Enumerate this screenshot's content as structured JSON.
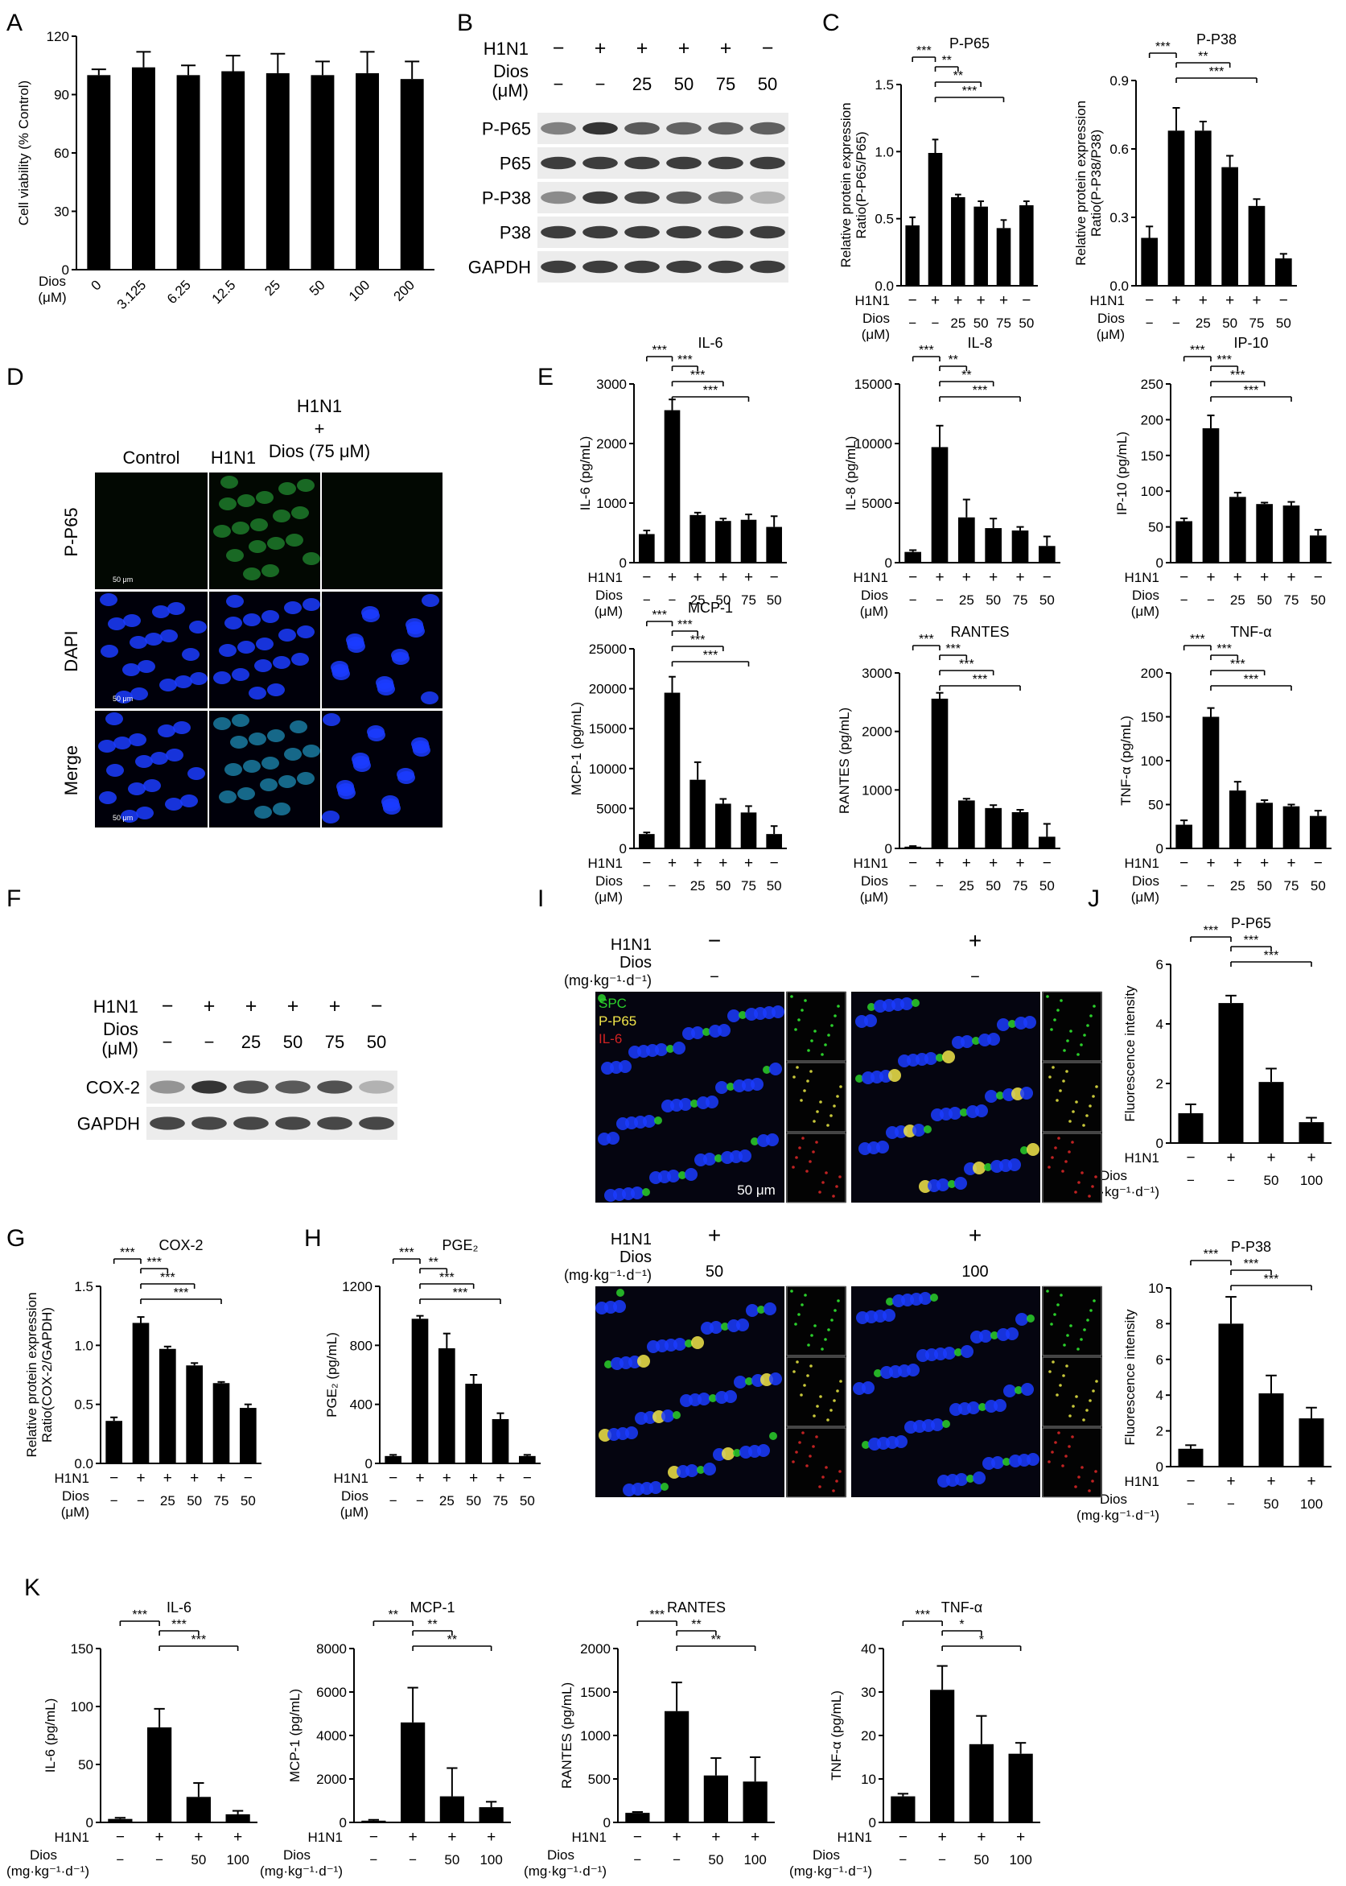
{
  "panel_letters": [
    "A",
    "B",
    "C",
    "D",
    "E",
    "F",
    "G",
    "H",
    "I",
    "J",
    "K"
  ],
  "colors": {
    "bar": "#000000",
    "blot_bg": "#ececec",
    "band": "#2a2a2a",
    "cell_blue": "#1b3cff",
    "green": "#2bd02b",
    "yellow": "#f2e64a",
    "red": "#d12222",
    "dark": "#050510"
  },
  "panel_A": {
    "ylabel": "Cell viability (% Control)",
    "row_label": "Dios\n(μM)",
    "categories": [
      "0",
      "3.125",
      "6.25",
      "12.5",
      "25",
      "50",
      "100",
      "200"
    ],
    "values": [
      100,
      104,
      100,
      102,
      101,
      100,
      101,
      98
    ],
    "errors": [
      3,
      8,
      5,
      8,
      10,
      7,
      11,
      9
    ],
    "ylim": [
      0,
      120
    ],
    "yticks": [
      0,
      30,
      60,
      90,
      120
    ]
  },
  "panel_B": {
    "row_labels": [
      "H1N1",
      "Dios\n(μM)"
    ],
    "h1n1": [
      "−",
      "+",
      "+",
      "+",
      "+",
      "−"
    ],
    "dios": [
      "−",
      "−",
      "25",
      "50",
      "75",
      "50"
    ],
    "blots": [
      {
        "label": "P-P65",
        "intensity": [
          0.55,
          0.95,
          0.75,
          0.7,
          0.72,
          0.72
        ]
      },
      {
        "label": "P65",
        "intensity": [
          0.9,
          0.9,
          0.9,
          0.9,
          0.9,
          0.9
        ]
      },
      {
        "label": "P-P38",
        "intensity": [
          0.5,
          0.9,
          0.85,
          0.75,
          0.55,
          0.3
        ]
      },
      {
        "label": "P38",
        "intensity": [
          0.9,
          0.9,
          0.9,
          0.9,
          0.9,
          0.9
        ]
      },
      {
        "label": "GAPDH",
        "intensity": [
          0.9,
          0.9,
          0.9,
          0.9,
          0.9,
          0.9
        ]
      }
    ]
  },
  "panel_D": {
    "columns": [
      "Control",
      "H1N1",
      "H1N1\n+\nDios (75 μM)"
    ],
    "rows": [
      "P-P65",
      "DAPI",
      "Merge"
    ],
    "scale": "50 μm"
  },
  "panel_F": {
    "row_labels": [
      "H1N1",
      "Dios\n(μM)"
    ],
    "h1n1": [
      "−",
      "+",
      "+",
      "+",
      "+",
      "−"
    ],
    "dios": [
      "−",
      "−",
      "25",
      "50",
      "75",
      "50"
    ],
    "blots": [
      {
        "label": "COX-2",
        "intensity": [
          0.45,
          0.95,
          0.8,
          0.75,
          0.8,
          0.3
        ]
      },
      {
        "label": "GAPDH",
        "intensity": [
          0.85,
          0.85,
          0.85,
          0.85,
          0.85,
          0.85
        ]
      }
    ]
  },
  "panel_I": {
    "h1n1_label": "H1N1",
    "dios_label": "Dios\n(mg·kg⁻¹·d⁻¹)",
    "groups": [
      {
        "h1n1": "−",
        "dios": "−"
      },
      {
        "h1n1": "+",
        "dios": "−"
      },
      {
        "h1n1": "+",
        "dios": "50"
      },
      {
        "h1n1": "+",
        "dios": "100"
      }
    ],
    "legend": [
      "SPC",
      "P-P65",
      "IL-6"
    ],
    "scale": "50 μm"
  },
  "chart_data": [
    {
      "id": "C1",
      "type": "bar",
      "title": "P-P65",
      "ylabel": "Relative protein expression\nRatio(P-P65/P65)",
      "values": [
        0.45,
        0.99,
        0.66,
        0.59,
        0.43,
        0.6
      ],
      "errors": [
        0.06,
        0.1,
        0.02,
        0.04,
        0.06,
        0.03
      ],
      "ylim": [
        0,
        1.5
      ],
      "yticks": [
        "0.0",
        "0.5",
        "1.0",
        "1.5"
      ],
      "h1n1": [
        "−",
        "+",
        "+",
        "+",
        "+",
        "−"
      ],
      "dios": [
        "−",
        "−",
        "25",
        "50",
        "75",
        "50"
      ],
      "dios_label": "Dios\n(μM)",
      "sig": [
        {
          "a": 0,
          "b": 1,
          "t": "***"
        },
        {
          "a": 1,
          "b": 2,
          "t": "**"
        },
        {
          "a": 1,
          "b": 3,
          "t": "**"
        },
        {
          "a": 1,
          "b": 4,
          "t": "***"
        }
      ]
    },
    {
      "id": "C2",
      "type": "bar",
      "title": "P-P38",
      "ylabel": "Relative protein expression\nRatio(P-P38/P38)",
      "values": [
        0.21,
        0.68,
        0.68,
        0.52,
        0.35,
        0.12
      ],
      "errors": [
        0.05,
        0.1,
        0.04,
        0.05,
        0.03,
        0.02
      ],
      "ylim": [
        0,
        0.9
      ],
      "yticks": [
        "0.0",
        "0.3",
        "0.6",
        "0.9"
      ],
      "h1n1": [
        "−",
        "+",
        "+",
        "+",
        "+",
        "−"
      ],
      "dios": [
        "−",
        "−",
        "25",
        "50",
        "75",
        "50"
      ],
      "dios_label": "Dios\n(μM)",
      "sig": [
        {
          "a": 0,
          "b": 1,
          "t": "***"
        },
        {
          "a": 1,
          "b": 3,
          "t": "**"
        },
        {
          "a": 1,
          "b": 4,
          "t": "***"
        }
      ]
    },
    {
      "id": "E1",
      "type": "bar",
      "title": "IL-6",
      "ylabel": "IL-6 (pg/mL)",
      "values": [
        480,
        2560,
        800,
        700,
        720,
        600
      ],
      "errors": [
        60,
        180,
        40,
        40,
        90,
        180
      ],
      "ylim": [
        0,
        3000
      ],
      "yticks": [
        "0",
        "1000",
        "2000",
        "3000"
      ],
      "h1n1": [
        "−",
        "+",
        "+",
        "+",
        "+",
        "−"
      ],
      "dios": [
        "−",
        "−",
        "25",
        "50",
        "75",
        "50"
      ],
      "dios_label": "Dios\n(μM)",
      "sig": [
        {
          "a": 0,
          "b": 1,
          "t": "***"
        },
        {
          "a": 1,
          "b": 2,
          "t": "***"
        },
        {
          "a": 1,
          "b": 3,
          "t": "***"
        },
        {
          "a": 1,
          "b": 4,
          "t": "***"
        }
      ]
    },
    {
      "id": "E2",
      "type": "bar",
      "title": "IL-8",
      "ylabel": "IL-8 (pg/mL)",
      "values": [
        900,
        9700,
        3800,
        2900,
        2700,
        1400
      ],
      "errors": [
        150,
        1800,
        1500,
        800,
        300,
        800
      ],
      "ylim": [
        0,
        15000
      ],
      "yticks": [
        "0",
        "5000",
        "10000",
        "15000"
      ],
      "h1n1": [
        "−",
        "+",
        "+",
        "+",
        "+",
        "−"
      ],
      "dios": [
        "−",
        "−",
        "25",
        "50",
        "75",
        "50"
      ],
      "dios_label": "Dios\n(μM)",
      "sig": [
        {
          "a": 0,
          "b": 1,
          "t": "***"
        },
        {
          "a": 1,
          "b": 2,
          "t": "**"
        },
        {
          "a": 1,
          "b": 3,
          "t": "**"
        },
        {
          "a": 1,
          "b": 4,
          "t": "***"
        }
      ]
    },
    {
      "id": "E3",
      "type": "bar",
      "title": "IP-10",
      "ylabel": "IP-10 (pg/mL)",
      "values": [
        58,
        188,
        92,
        82,
        80,
        38
      ],
      "errors": [
        4,
        18,
        6,
        2,
        5,
        8
      ],
      "ylim": [
        0,
        250
      ],
      "yticks": [
        "0",
        "50",
        "100",
        "150",
        "200",
        "250"
      ],
      "h1n1": [
        "−",
        "+",
        "+",
        "+",
        "+",
        "−"
      ],
      "dios": [
        "−",
        "−",
        "25",
        "50",
        "75",
        "50"
      ],
      "dios_label": "Dios\n(μM)",
      "sig": [
        {
          "a": 0,
          "b": 1,
          "t": "***"
        },
        {
          "a": 1,
          "b": 2,
          "t": "***"
        },
        {
          "a": 1,
          "b": 3,
          "t": "***"
        },
        {
          "a": 1,
          "b": 4,
          "t": "***"
        }
      ]
    },
    {
      "id": "E4",
      "type": "bar",
      "title": "MCP-1",
      "ylabel": "MCP-1 (pg/mL)",
      "values": [
        1800,
        19500,
        8600,
        5600,
        4500,
        1800
      ],
      "errors": [
        200,
        2000,
        2200,
        600,
        800,
        1000
      ],
      "ylim": [
        0,
        25000
      ],
      "yticks": [
        "0",
        "5000",
        "10000",
        "15000",
        "20000",
        "25000"
      ],
      "h1n1": [
        "−",
        "+",
        "+",
        "+",
        "+",
        "−"
      ],
      "dios": [
        "−",
        "−",
        "25",
        "50",
        "75",
        "50"
      ],
      "dios_label": "Dios\n(μM)",
      "sig": [
        {
          "a": 0,
          "b": 1,
          "t": "***"
        },
        {
          "a": 1,
          "b": 2,
          "t": "***"
        },
        {
          "a": 1,
          "b": 3,
          "t": "***"
        },
        {
          "a": 1,
          "b": 4,
          "t": "***"
        }
      ]
    },
    {
      "id": "E5",
      "type": "bar",
      "title": "RANTES",
      "ylabel": "RANTES (pg/mL)",
      "values": [
        30,
        2560,
        820,
        690,
        620,
        200
      ],
      "errors": [
        10,
        100,
        30,
        50,
        40,
        220
      ],
      "ylim": [
        0,
        3000
      ],
      "yticks": [
        "0",
        "1000",
        "2000",
        "3000"
      ],
      "h1n1": [
        "−",
        "+",
        "+",
        "+",
        "+",
        "−"
      ],
      "dios": [
        "−",
        "−",
        "25",
        "50",
        "75",
        "50"
      ],
      "dios_label": "Dios\n(μM)",
      "sig": [
        {
          "a": 0,
          "b": 1,
          "t": "***"
        },
        {
          "a": 1,
          "b": 2,
          "t": "***"
        },
        {
          "a": 1,
          "b": 3,
          "t": "***"
        },
        {
          "a": 1,
          "b": 4,
          "t": "***"
        }
      ]
    },
    {
      "id": "E6",
      "type": "bar",
      "title": "TNF-α",
      "ylabel": "TNF-α (pg/mL)",
      "values": [
        27,
        150,
        66,
        52,
        48,
        37
      ],
      "errors": [
        5,
        10,
        10,
        3,
        2,
        6
      ],
      "ylim": [
        0,
        200
      ],
      "yticks": [
        "0",
        "50",
        "100",
        "150",
        "200"
      ],
      "h1n1": [
        "−",
        "+",
        "+",
        "+",
        "+",
        "−"
      ],
      "dios": [
        "−",
        "−",
        "25",
        "50",
        "75",
        "50"
      ],
      "dios_label": "Dios\n(μM)",
      "sig": [
        {
          "a": 0,
          "b": 1,
          "t": "***"
        },
        {
          "a": 1,
          "b": 2,
          "t": "***"
        },
        {
          "a": 1,
          "b": 3,
          "t": "***"
        },
        {
          "a": 1,
          "b": 4,
          "t": "***"
        }
      ]
    },
    {
      "id": "G",
      "type": "bar",
      "title": "COX-2",
      "ylabel": "Relative protein expression\nRatio(COX-2/GAPDH)",
      "values": [
        0.36,
        1.19,
        0.97,
        0.83,
        0.68,
        0.47
      ],
      "errors": [
        0.03,
        0.05,
        0.02,
        0.02,
        0.01,
        0.03
      ],
      "ylim": [
        0,
        1.5
      ],
      "yticks": [
        "0.0",
        "0.5",
        "1.0",
        "1.5"
      ],
      "h1n1": [
        "−",
        "+",
        "+",
        "+",
        "+",
        "−"
      ],
      "dios": [
        "−",
        "−",
        "25",
        "50",
        "75",
        "50"
      ],
      "dios_label": "Dios\n(μM)",
      "sig": [
        {
          "a": 0,
          "b": 1,
          "t": "***"
        },
        {
          "a": 1,
          "b": 2,
          "t": "***"
        },
        {
          "a": 1,
          "b": 3,
          "t": "***"
        },
        {
          "a": 1,
          "b": 4,
          "t": "***"
        }
      ]
    },
    {
      "id": "H",
      "type": "bar",
      "title": "PGE₂",
      "ylabel": "PGE₂ (pg/mL)",
      "values": [
        50,
        980,
        780,
        540,
        300,
        50
      ],
      "errors": [
        8,
        20,
        100,
        60,
        40,
        8
      ],
      "ylim": [
        0,
        1200
      ],
      "yticks": [
        "0",
        "400",
        "800",
        "1200"
      ],
      "h1n1": [
        "−",
        "+",
        "+",
        "+",
        "+",
        "−"
      ],
      "dios": [
        "−",
        "−",
        "25",
        "50",
        "75",
        "50"
      ],
      "dios_label": "Dios\n(μM)",
      "sig": [
        {
          "a": 0,
          "b": 1,
          "t": "***"
        },
        {
          "a": 1,
          "b": 2,
          "t": "**"
        },
        {
          "a": 1,
          "b": 3,
          "t": "***"
        },
        {
          "a": 1,
          "b": 4,
          "t": "***"
        }
      ]
    },
    {
      "id": "J1",
      "type": "bar",
      "title": "P-P65",
      "ylabel": "Fluorescence intensity",
      "values": [
        1.0,
        4.7,
        2.05,
        0.7
      ],
      "errors": [
        0.3,
        0.25,
        0.45,
        0.15
      ],
      "ylim": [
        0,
        6
      ],
      "yticks": [
        "0",
        "2",
        "4",
        "6"
      ],
      "h1n1": [
        "−",
        "+",
        "+",
        "+"
      ],
      "dios": [
        "−",
        "−",
        "50",
        "100"
      ],
      "dios_label": "Dios\n(mg·kg⁻¹·d⁻¹)",
      "sig": [
        {
          "a": 0,
          "b": 1,
          "t": "***"
        },
        {
          "a": 1,
          "b": 2,
          "t": "***"
        },
        {
          "a": 1,
          "b": 3,
          "t": "***"
        }
      ]
    },
    {
      "id": "J2",
      "type": "bar",
      "title": "P-P38",
      "ylabel": "Fluorescence intensity",
      "values": [
        1.0,
        8.0,
        4.1,
        2.7
      ],
      "errors": [
        0.2,
        1.5,
        1.0,
        0.6
      ],
      "ylim": [
        0,
        10
      ],
      "yticks": [
        "0",
        "2",
        "4",
        "6",
        "8",
        "10"
      ],
      "h1n1": [
        "−",
        "+",
        "+",
        "+"
      ],
      "dios": [
        "−",
        "−",
        "50",
        "100"
      ],
      "dios_label": "Dios\n(mg·kg⁻¹·d⁻¹)",
      "sig": [
        {
          "a": 0,
          "b": 1,
          "t": "***"
        },
        {
          "a": 1,
          "b": 2,
          "t": "***"
        },
        {
          "a": 1,
          "b": 3,
          "t": "***"
        }
      ]
    },
    {
      "id": "K1",
      "type": "bar",
      "title": "IL-6",
      "ylabel": "IL-6 (pg/mL)",
      "values": [
        3,
        82,
        22,
        7
      ],
      "errors": [
        1,
        16,
        12,
        3
      ],
      "ylim": [
        0,
        150
      ],
      "yticks": [
        "0",
        "50",
        "100",
        "150"
      ],
      "h1n1": [
        "−",
        "+",
        "+",
        "+"
      ],
      "dios": [
        "−",
        "−",
        "50",
        "100"
      ],
      "dios_label": "Dios\n(mg·kg⁻¹·d⁻¹)",
      "sig": [
        {
          "a": 0,
          "b": 1,
          "t": "***"
        },
        {
          "a": 1,
          "b": 2,
          "t": "***"
        },
        {
          "a": 1,
          "b": 3,
          "t": "***"
        }
      ]
    },
    {
      "id": "K2",
      "type": "bar",
      "title": "MCP-1",
      "ylabel": "MCP-1 (pg/mL)",
      "values": [
        80,
        4600,
        1200,
        700
      ],
      "errors": [
        40,
        1600,
        1300,
        250
      ],
      "ylim": [
        0,
        8000
      ],
      "yticks": [
        "0",
        "2000",
        "4000",
        "6000",
        "8000"
      ],
      "h1n1": [
        "−",
        "+",
        "+",
        "+"
      ],
      "dios": [
        "−",
        "−",
        "50",
        "100"
      ],
      "dios_label": "Dios\n(mg·kg⁻¹·d⁻¹)",
      "sig": [
        {
          "a": 0,
          "b": 1,
          "t": "**"
        },
        {
          "a": 1,
          "b": 2,
          "t": "**"
        },
        {
          "a": 1,
          "b": 3,
          "t": "**"
        }
      ]
    },
    {
      "id": "K3",
      "type": "bar",
      "title": "RANTES",
      "ylabel": "RANTES (pg/mL)",
      "values": [
        110,
        1280,
        540,
        470
      ],
      "errors": [
        10,
        330,
        200,
        280
      ],
      "ylim": [
        0,
        2000
      ],
      "yticks": [
        "0",
        "500",
        "1000",
        "1500",
        "2000"
      ],
      "h1n1": [
        "−",
        "+",
        "+",
        "+"
      ],
      "dios": [
        "−",
        "−",
        "50",
        "100"
      ],
      "dios_label": "Dios\n(mg·kg⁻¹·d⁻¹)",
      "sig": [
        {
          "a": 0,
          "b": 1,
          "t": "***"
        },
        {
          "a": 1,
          "b": 2,
          "t": "**"
        },
        {
          "a": 1,
          "b": 3,
          "t": "**"
        }
      ]
    },
    {
      "id": "K4",
      "type": "bar",
      "title": "TNF-α",
      "ylabel": "TNF-α (pg/mL)",
      "values": [
        6,
        30.5,
        18,
        15.8
      ],
      "errors": [
        0.6,
        5.5,
        6.5,
        2.5
      ],
      "ylim": [
        0,
        40
      ],
      "yticks": [
        "0",
        "10",
        "20",
        "30",
        "40"
      ],
      "h1n1": [
        "−",
        "+",
        "+",
        "+"
      ],
      "dios": [
        "−",
        "−",
        "50",
        "100"
      ],
      "dios_label": "Dios\n(mg·kg⁻¹·d⁻¹)",
      "sig": [
        {
          "a": 0,
          "b": 1,
          "t": "***"
        },
        {
          "a": 1,
          "b": 2,
          "t": "*"
        },
        {
          "a": 1,
          "b": 3,
          "t": "*"
        }
      ]
    }
  ]
}
